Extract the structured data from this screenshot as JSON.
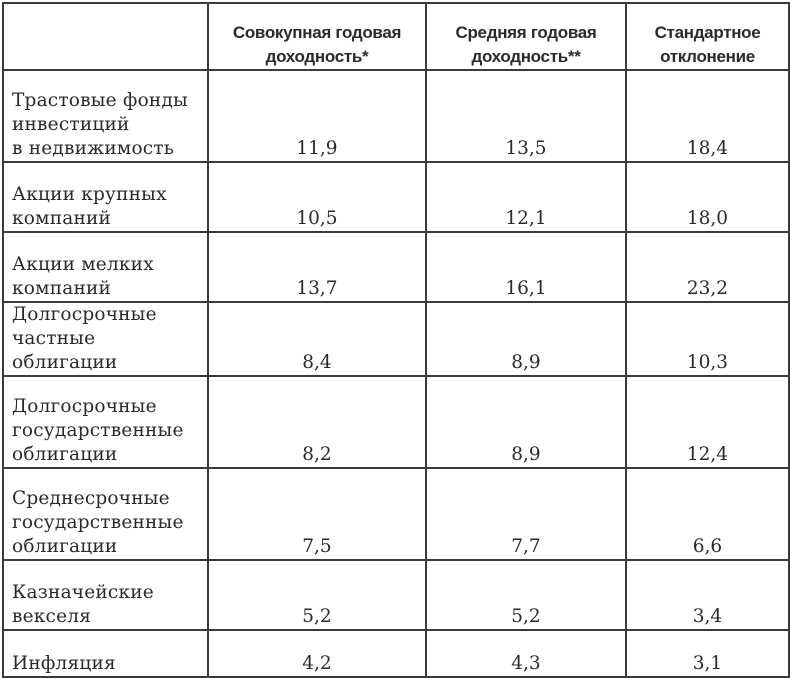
{
  "table": {
    "headers": [
      "",
      "Совокупная годовая доходность*",
      "Средняя годовая доходность**",
      "Стандартное отклонение"
    ],
    "header_lines": [
      [],
      [
        "Совокупная годовая",
        "доходность*"
      ],
      [
        "Средняя годовая",
        "доходность**"
      ],
      [
        "Стандартное",
        "отклонение"
      ]
    ],
    "rows": [
      {
        "label": "Трастовые фонды инвестиций в недвижимость",
        "label_lines": [
          "Трастовые фонды",
          "инвестиций",
          "в недвижимость"
        ],
        "compound_annual_return": "11,9",
        "average_annual_return": "13,5",
        "standard_deviation": "18,4"
      },
      {
        "label": "Акции крупных компаний",
        "label_lines": [
          "Акции крупных",
          "компаний"
        ],
        "compound_annual_return": "10,5",
        "average_annual_return": "12,1",
        "standard_deviation": "18,0"
      },
      {
        "label": "Акции мелких компаний",
        "label_lines": [
          "Акции мелких",
          "компаний"
        ],
        "compound_annual_return": "13,7",
        "average_annual_return": "16,1",
        "standard_deviation": "23,2"
      },
      {
        "label": "Долгосрочные частные облигации",
        "label_lines": [
          "Долгосрочные",
          "частные облигации"
        ],
        "compound_annual_return": "8,4",
        "average_annual_return": "8,9",
        "standard_deviation": "10,3"
      },
      {
        "label": "Долгосрочные государственные облигации",
        "label_lines": [
          "Долгосрочные",
          "государственные",
          "облигации"
        ],
        "compound_annual_return": "8,2",
        "average_annual_return": "8,9",
        "standard_deviation": "12,4"
      },
      {
        "label": "Среднесрочные государственные облигации",
        "label_lines": [
          "Среднесрочные",
          "государственные",
          "облигации"
        ],
        "compound_annual_return": "7,5",
        "average_annual_return": "7,7",
        "standard_deviation": "6,6"
      },
      {
        "label": "Казначейские векселя",
        "label_lines": [
          "Казначейские",
          "векселя"
        ],
        "compound_annual_return": "5,2",
        "average_annual_return": "5,2",
        "standard_deviation": "3,4"
      },
      {
        "label": "Инфляция",
        "label_lines": [
          "Инфляция"
        ],
        "compound_annual_return": "4,2",
        "average_annual_return": "4,3",
        "standard_deviation": "3,1"
      }
    ]
  },
  "colors": {
    "border": "#3a3a3a",
    "text": "#2a2a2a",
    "background": "#ffffff"
  }
}
